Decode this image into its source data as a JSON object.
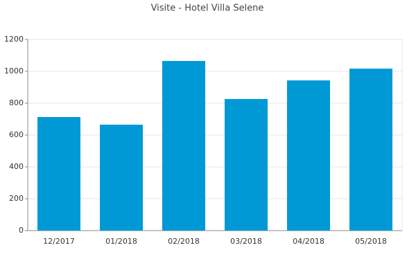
{
  "chart_data": {
    "type": "bar",
    "title": "Visite - Hotel Villa Selene",
    "categories": [
      "12/2017",
      "01/2018",
      "02/2018",
      "03/2018",
      "04/2018",
      "05/2018"
    ],
    "values": [
      713,
      665,
      1065,
      826,
      943,
      1017
    ],
    "color": "#0099d6",
    "ylim": [
      0,
      1200
    ],
    "yticks": [
      0,
      200,
      400,
      600,
      800,
      1000,
      1200
    ],
    "grid": true
  }
}
